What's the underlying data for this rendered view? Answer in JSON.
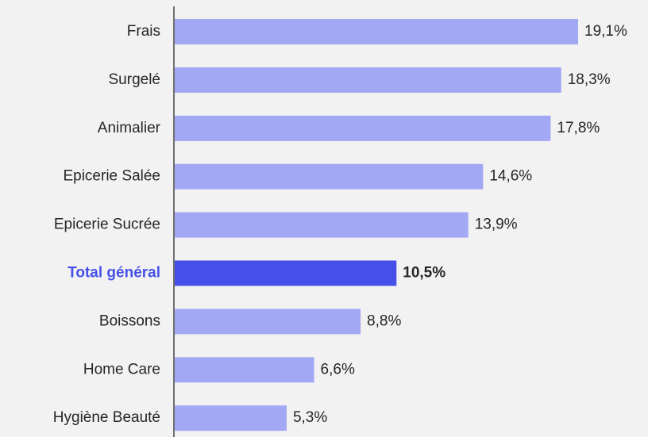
{
  "chart_data": {
    "type": "bar",
    "orientation": "horizontal",
    "categories": [
      "Frais",
      "Surgelé",
      "Animalier",
      "Epicerie Salée",
      "Epicerie Sucrée",
      "Total général",
      "Boissons",
      "Home Care",
      "Hygiène Beauté"
    ],
    "values": [
      19.1,
      18.3,
      17.8,
      14.6,
      13.9,
      10.5,
      8.8,
      6.6,
      5.3
    ],
    "value_labels": [
      "19,1%",
      "18,3%",
      "17,8%",
      "14,6%",
      "13,9%",
      "10,5%",
      "8,8%",
      "6,6%",
      "5,3%"
    ],
    "color": "#a3a8f5",
    "highlight": "Total général",
    "highlight_color": "#4650e8"
  }
}
